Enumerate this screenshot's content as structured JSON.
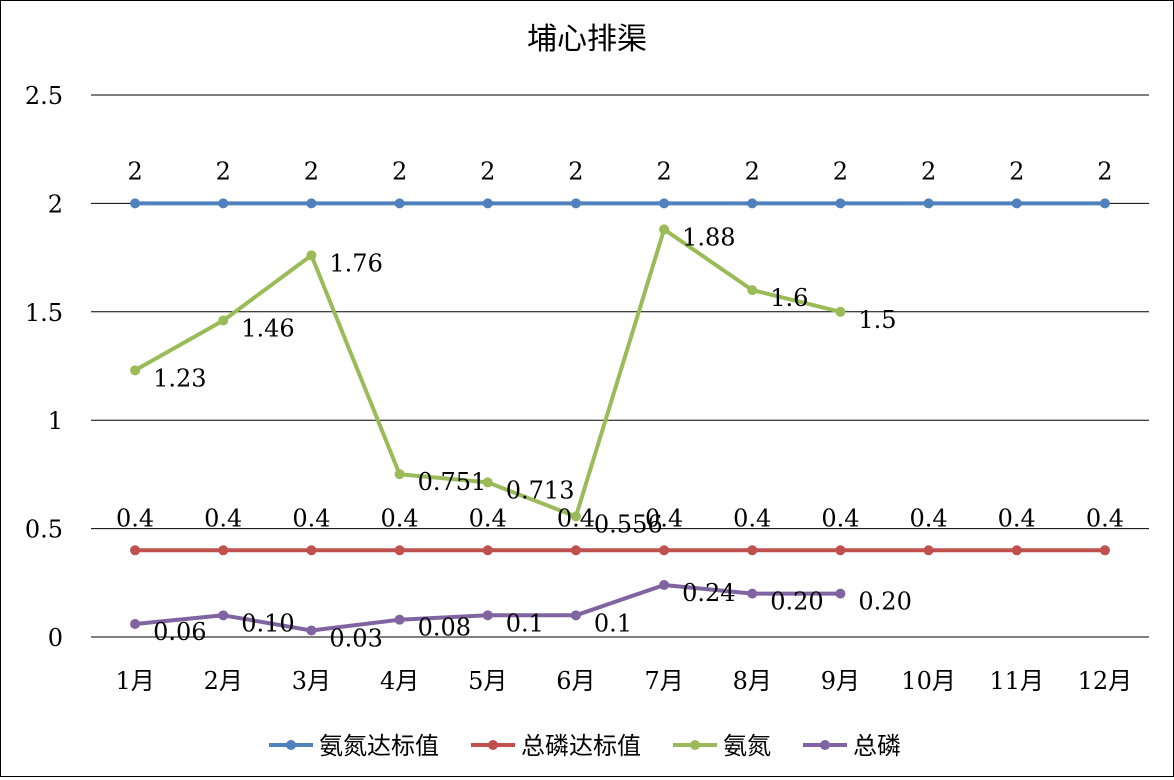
{
  "chart_data": {
    "type": "line",
    "title": "埔心排渠",
    "xlabel": "",
    "ylabel": "",
    "ylim": [
      0,
      2.5
    ],
    "yticks": [
      "0",
      "0.5",
      "1",
      "1.5",
      "2",
      "2.5"
    ],
    "grid": true,
    "legend_position": "bottom",
    "categories": [
      "1月",
      "2月",
      "3月",
      "4月",
      "5月",
      "6月",
      "7月",
      "8月",
      "9月",
      "10月",
      "11月",
      "12月"
    ],
    "series": [
      {
        "name": "氨氮达标值",
        "color": "#4F81BD",
        "values": [
          2,
          2,
          2,
          2,
          2,
          2,
          2,
          2,
          2,
          2,
          2,
          2
        ],
        "labels": [
          "2",
          "2",
          "2",
          "2",
          "2",
          "2",
          "2",
          "2",
          "2",
          "2",
          "2",
          "2"
        ],
        "label_position": "above"
      },
      {
        "name": "总磷达标值",
        "color": "#C0504D",
        "values": [
          0.4,
          0.4,
          0.4,
          0.4,
          0.4,
          0.4,
          0.4,
          0.4,
          0.4,
          0.4,
          0.4,
          0.4
        ],
        "labels": [
          "0.4",
          "0.4",
          "0.4",
          "0.4",
          "0.4",
          "0.4",
          "0.4",
          "0.4",
          "0.4",
          "0.4",
          "0.4",
          "0.4"
        ],
        "label_position": "above"
      },
      {
        "name": "氨氮",
        "color": "#9BBB59",
        "values": [
          1.23,
          1.46,
          1.76,
          0.751,
          0.713,
          0.556,
          1.88,
          1.6,
          1.5,
          null,
          null,
          null
        ],
        "labels": [
          "1.23",
          "1.46",
          "1.76",
          "0.751",
          "0.713",
          "0.556",
          "1.88",
          "1.6",
          "1.5",
          null,
          null,
          null
        ],
        "label_position": "right"
      },
      {
        "name": "总磷",
        "color": "#8064A2",
        "values": [
          0.06,
          0.1,
          0.03,
          0.08,
          0.1,
          0.1,
          0.24,
          0.2,
          0.2,
          null,
          null,
          null
        ],
        "labels": [
          "0.06",
          "0.10",
          "0.03",
          "0.08",
          "0.1",
          "0.1",
          "0.24",
          "0.20",
          "0.20",
          null,
          null,
          null
        ],
        "label_position": "right"
      }
    ]
  }
}
